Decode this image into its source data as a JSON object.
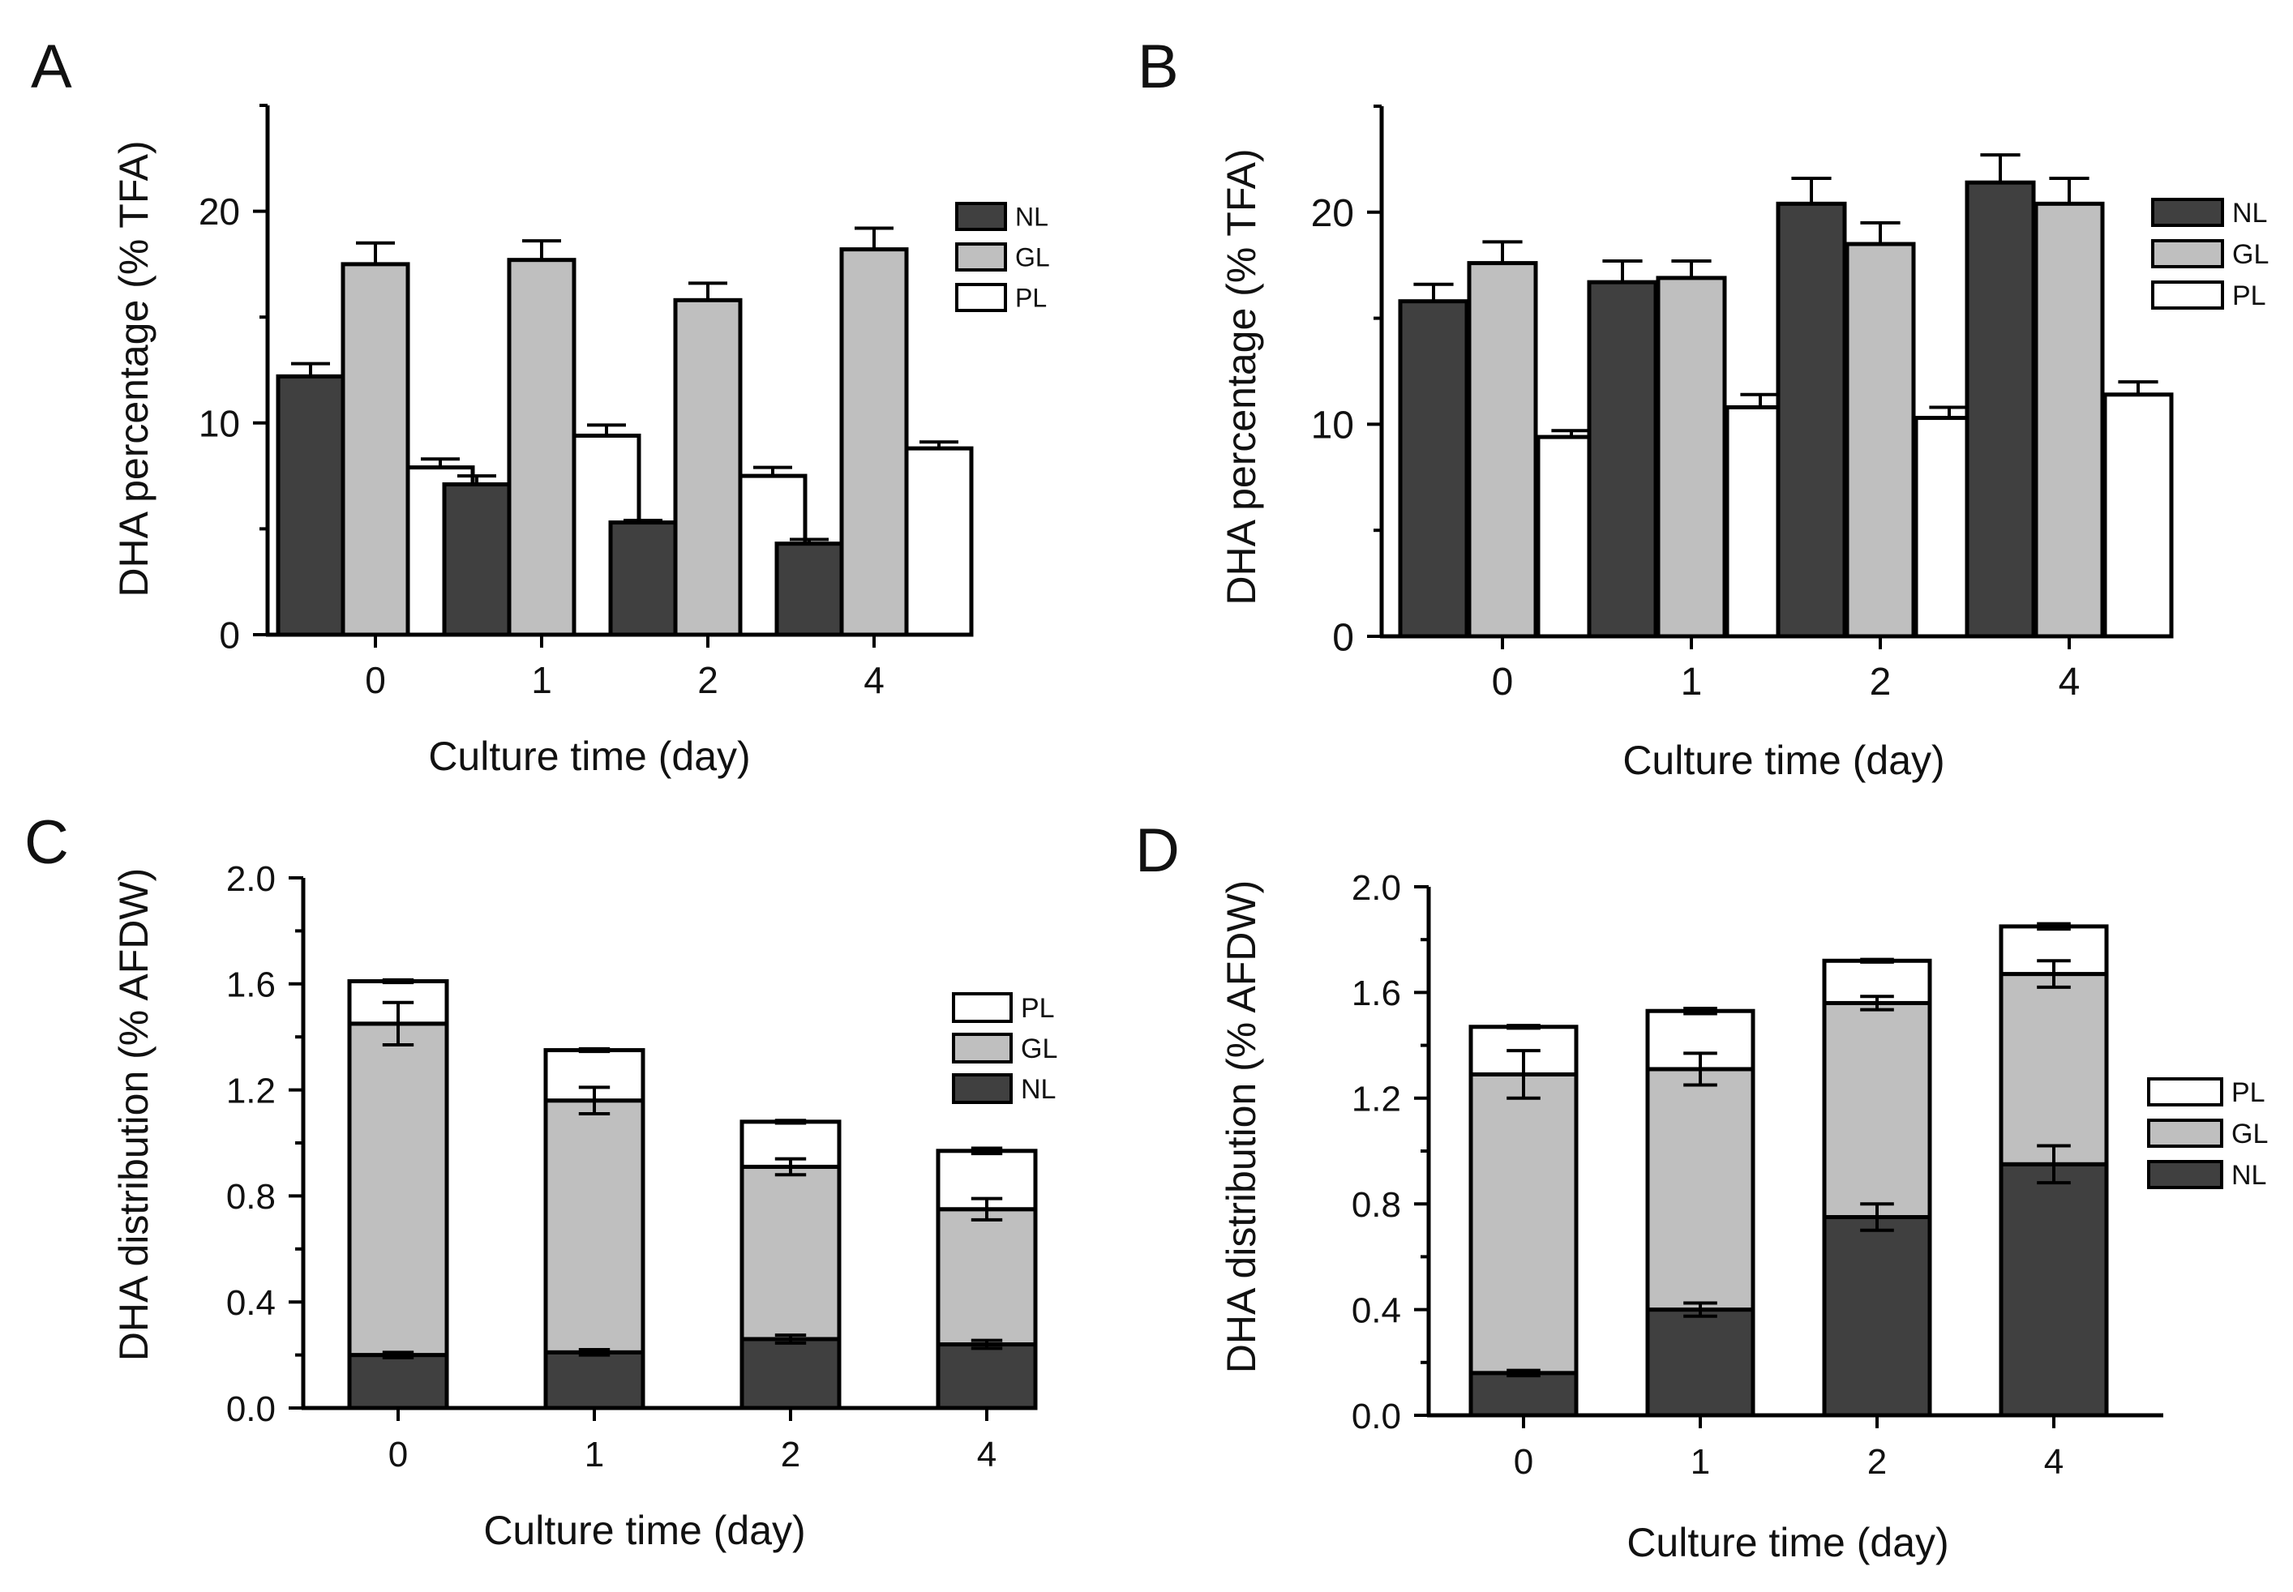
{
  "colors": {
    "NL": "#404040",
    "GL": "#bfbfbf",
    "PL": "#ffffff",
    "stroke": "#000000"
  },
  "chart_data": [
    {
      "panel_label": "A",
      "type": "bar",
      "stacked": false,
      "xlabel": "Culture time (day)",
      "ylabel": "DHA percentage (% TFA)",
      "ylim": [
        0,
        25
      ],
      "y_ticks": [
        0,
        10,
        20
      ],
      "y_tick_labels": [
        "0",
        "10",
        "20"
      ],
      "y_minor_step": 5,
      "categories": [
        "0",
        "1",
        "2",
        "4"
      ],
      "legend_order": [
        "NL",
        "GL",
        "PL"
      ],
      "series": [
        {
          "name": "NL",
          "values": [
            12.2,
            7.1,
            5.3,
            4.3
          ],
          "errors": [
            0.6,
            0.4,
            0.1,
            0.2
          ]
        },
        {
          "name": "GL",
          "values": [
            17.5,
            17.7,
            15.8,
            18.2
          ],
          "errors": [
            1.0,
            0.9,
            0.8,
            1.0
          ]
        },
        {
          "name": "PL",
          "values": [
            7.9,
            9.4,
            7.5,
            8.8
          ],
          "errors": [
            0.4,
            0.5,
            0.4,
            0.3
          ]
        }
      ]
    },
    {
      "panel_label": "B",
      "type": "bar",
      "stacked": false,
      "xlabel": "Culture time (day)",
      "ylabel": "DHA percentage (% TFA)",
      "ylim": [
        0,
        25
      ],
      "y_ticks": [
        0,
        10,
        20
      ],
      "y_tick_labels": [
        "0",
        "10",
        "20"
      ],
      "y_minor_step": 5,
      "categories": [
        "0",
        "1",
        "2",
        "4"
      ],
      "legend_order": [
        "NL",
        "GL",
        "PL"
      ],
      "series": [
        {
          "name": "NL",
          "values": [
            15.8,
            16.7,
            20.4,
            21.4
          ],
          "errors": [
            0.8,
            1.0,
            1.2,
            1.3
          ]
        },
        {
          "name": "GL",
          "values": [
            17.6,
            16.9,
            18.5,
            20.4
          ],
          "errors": [
            1.0,
            0.8,
            1.0,
            1.2
          ]
        },
        {
          "name": "PL",
          "values": [
            9.4,
            10.8,
            10.3,
            11.4
          ],
          "errors": [
            0.3,
            0.6,
            0.5,
            0.6
          ]
        }
      ]
    },
    {
      "panel_label": "C",
      "type": "bar",
      "stacked": true,
      "xlabel": "Culture time (day)",
      "ylabel": "DHA distribution (% AFDW)",
      "ylim": [
        0,
        2.0
      ],
      "y_ticks": [
        0,
        0.4,
        0.8,
        1.2,
        1.6,
        2.0
      ],
      "y_tick_labels": [
        "0.0",
        "0.4",
        "0.8",
        "1.2",
        "1.6",
        "2.0"
      ],
      "y_minor_step": 0.2,
      "categories": [
        "0",
        "1",
        "2",
        "4"
      ],
      "legend_order": [
        "PL",
        "GL",
        "NL"
      ],
      "series": [
        {
          "name": "NL",
          "values": [
            0.2,
            0.21,
            0.26,
            0.24
          ],
          "errors": [
            0.01,
            0.01,
            0.015,
            0.015
          ]
        },
        {
          "name": "GL",
          "values": [
            1.25,
            0.95,
            0.65,
            0.51
          ],
          "errors": [
            0.08,
            0.05,
            0.03,
            0.04
          ]
        },
        {
          "name": "PL",
          "values": [
            0.16,
            0.19,
            0.17,
            0.22
          ],
          "errors": [
            0.005,
            0.005,
            0.005,
            0.01
          ]
        }
      ]
    },
    {
      "panel_label": "D",
      "type": "bar",
      "stacked": true,
      "xlabel": "Culture time (day)",
      "ylabel": "DHA distribution (% AFDW)",
      "ylim": [
        0,
        2.0
      ],
      "y_ticks": [
        0,
        0.4,
        0.8,
        1.2,
        1.6,
        2.0
      ],
      "y_tick_labels": [
        "0.0",
        "0.4",
        "0.8",
        "1.2",
        "1.6",
        "2.0"
      ],
      "y_minor_step": 0.2,
      "categories": [
        "0",
        "1",
        "2",
        "4"
      ],
      "legend_order": [
        "PL",
        "GL",
        "NL"
      ],
      "series": [
        {
          "name": "NL",
          "values": [
            0.16,
            0.4,
            0.75,
            0.95
          ],
          "errors": [
            0.01,
            0.025,
            0.05,
            0.07
          ]
        },
        {
          "name": "GL",
          "values": [
            1.13,
            0.91,
            0.81,
            0.72
          ],
          "errors": [
            0.09,
            0.06,
            0.025,
            0.05
          ]
        },
        {
          "name": "PL",
          "values": [
            0.18,
            0.22,
            0.16,
            0.18
          ],
          "errors": [
            0.005,
            0.01,
            0.005,
            0.01
          ]
        }
      ]
    }
  ]
}
